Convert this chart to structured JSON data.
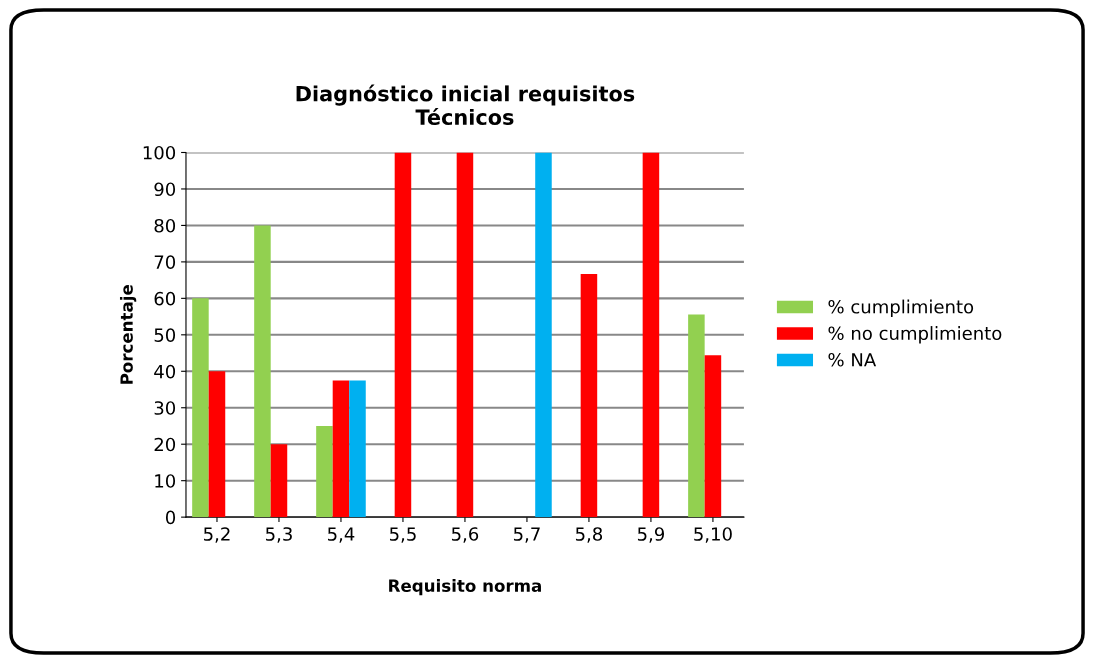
{
  "chart_data": {
    "type": "bar",
    "title": "Diagnóstico inicial requisitos\nTécnicos",
    "xlabel": "Requisito norma",
    "ylabel": "Porcentaje",
    "categories": [
      "5,2",
      "5,3",
      "5,4",
      "5,5",
      "5,6",
      "5,7",
      "5,8",
      "5,9",
      "5,10"
    ],
    "series": [
      {
        "name": "% cumplimiento",
        "color": "#92d050",
        "values": [
          60,
          80,
          25,
          0,
          0,
          0,
          0,
          0,
          55.6
        ]
      },
      {
        "name": "% no cumplimiento",
        "color": "#ff0000",
        "values": [
          40,
          20,
          37.5,
          100,
          100,
          0,
          66.7,
          100,
          44.4
        ]
      },
      {
        "name": "% NA",
        "color": "#00b0f0",
        "values": [
          0,
          0,
          37.5,
          0,
          0,
          100,
          0,
          0,
          0
        ]
      }
    ],
    "ylim": [
      0,
      100
    ],
    "yticks": [
      0,
      10,
      20,
      30,
      40,
      50,
      60,
      70,
      80,
      90,
      100
    ],
    "grid": "y",
    "legend": "right"
  }
}
